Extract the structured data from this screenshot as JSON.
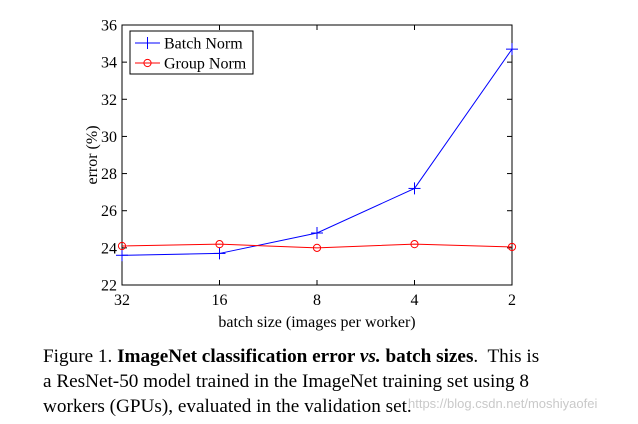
{
  "chart_data": {
    "type": "line",
    "categories": [
      "32",
      "16",
      "8",
      "4",
      "2"
    ],
    "xlabel": "batch size (images per worker)",
    "ylabel": "error (%)",
    "ylim": [
      22,
      36
    ],
    "yticks": [
      "22",
      "24",
      "26",
      "28",
      "30",
      "32",
      "34",
      "36"
    ],
    "grid": false,
    "legend_position": "top-left",
    "series": [
      {
        "name": "Batch Norm",
        "values": [
          23.6,
          23.7,
          24.8,
          27.2,
          34.7
        ],
        "color": "#0000ff",
        "marker": "plus"
      },
      {
        "name": "Group Norm",
        "values": [
          24.1,
          24.2,
          24.0,
          24.2,
          24.05
        ],
        "color": "#ff0000",
        "marker": "circle"
      }
    ]
  },
  "caption": {
    "lines": [
      [
        {
          "text": "Figure 1. ",
          "style": "normal"
        },
        {
          "text": "ImageNet classification error ",
          "style": "bold"
        },
        {
          "text": "vs.",
          "style": "bold-italic"
        },
        {
          "text": " batch sizes",
          "style": "bold"
        },
        {
          "text": ".  This is",
          "style": "normal"
        }
      ],
      [
        {
          "text": "a ResNet-50 model trained in the ImageNet training set using 8",
          "style": "normal"
        }
      ],
      [
        {
          "text": "workers (GPUs), evaluated in the validation set.",
          "style": "normal"
        }
      ]
    ]
  },
  "watermark": "https://blog.csdn.net/moshiyaofei"
}
